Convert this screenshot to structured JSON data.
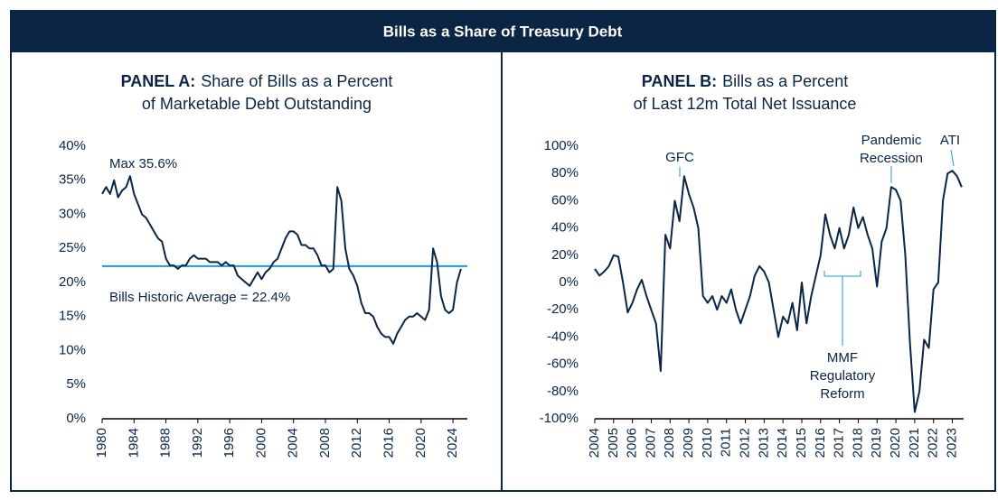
{
  "title": "Bills as a Share of Treasury Debt",
  "chart_data": [
    {
      "type": "line",
      "title_label": "PANEL A:",
      "title": [
        "Share of Bills as a Percent",
        "of Marketable Debt Outstanding"
      ],
      "x": [
        1980,
        1980.5,
        1981,
        1981.5,
        1982,
        1982.5,
        1983,
        1983.5,
        1984,
        1984.5,
        1985,
        1985.5,
        1986,
        1986.5,
        1987,
        1987.5,
        1988,
        1988.5,
        1989,
        1989.5,
        1990,
        1990.5,
        1991,
        1991.5,
        1992,
        1992.5,
        1993,
        1993.5,
        1994,
        1994.5,
        1995,
        1995.5,
        1996,
        1996.5,
        1997,
        1997.5,
        1998,
        1998.5,
        1999,
        1999.5,
        2000,
        2000.5,
        2001,
        2001.5,
        2002,
        2002.5,
        2003,
        2003.5,
        2004,
        2004.5,
        2005,
        2005.5,
        2006,
        2006.5,
        2007,
        2007.5,
        2008,
        2008.5,
        2009,
        2009.5,
        2010,
        2010.5,
        2011,
        2011.5,
        2012,
        2012.5,
        2013,
        2013.5,
        2014,
        2014.5,
        2015,
        2015.5,
        2016,
        2016.5,
        2017,
        2017.5,
        2018,
        2018.5,
        2019,
        2019.5,
        2020,
        2020.5,
        2021,
        2021.5,
        2022,
        2022.5,
        2023,
        2023.5,
        2024,
        2024.5,
        2025
      ],
      "series": [
        {
          "color": "#0b2545",
          "values": [
            33,
            34,
            33,
            35,
            32.5,
            33.5,
            34,
            35.6,
            33,
            31.5,
            30,
            29.5,
            28.5,
            27.5,
            26.5,
            26,
            23.5,
            22.5,
            22.5,
            22,
            22.5,
            22.5,
            23.5,
            24,
            23.5,
            23.5,
            23.5,
            23,
            23,
            23,
            22.5,
            23,
            22.5,
            22.5,
            21,
            20.5,
            20,
            19.5,
            20.5,
            21.5,
            20.5,
            21.5,
            22,
            23,
            23.5,
            25,
            26.5,
            27.5,
            27.5,
            27,
            25.5,
            25.5,
            25,
            25,
            24,
            22.5,
            22.5,
            21.5,
            22,
            34,
            32,
            25,
            22,
            21,
            19.5,
            17,
            15.5,
            15.5,
            15,
            13.5,
            12.5,
            12,
            12,
            11,
            12.5,
            13.5,
            14.5,
            15,
            15,
            15.5,
            15,
            14.5,
            16,
            25,
            23,
            18,
            16,
            15.5,
            16,
            20,
            22
          ]
        }
      ],
      "xlim": [
        1980,
        2025.8
      ],
      "xticks": [
        1980,
        1984,
        1988,
        1992,
        1996,
        2000,
        2004,
        2008,
        2012,
        2016,
        2020,
        2024
      ],
      "ylim": [
        0,
        40
      ],
      "yticks": [
        {
          "value": 0,
          "label": "0%"
        },
        {
          "value": 5,
          "label": "5%"
        },
        {
          "value": 10,
          "label": "10%"
        },
        {
          "value": 15,
          "label": "15%"
        },
        {
          "value": 20,
          "label": "20%"
        },
        {
          "value": 25,
          "label": "25%"
        },
        {
          "value": 30,
          "label": "30%"
        },
        {
          "value": 35,
          "label": "35%"
        },
        {
          "value": 40,
          "label": "40%"
        }
      ],
      "reference_line": {
        "value": 22.4,
        "text": "Bills Historic Average = 22.4%",
        "color": "#1a9bd7"
      },
      "annotations": [
        {
          "text": [
            "Max 35.6%"
          ]
        }
      ]
    },
    {
      "type": "line",
      "title_label": "PANEL B:",
      "title": [
        "Bills as a Percent",
        "of Last 12m Total Net Issuance"
      ],
      "x": [
        2004,
        2004.25,
        2004.5,
        2004.75,
        2005,
        2005.25,
        2005.5,
        2005.75,
        2006,
        2006.25,
        2006.5,
        2006.75,
        2007,
        2007.25,
        2007.5,
        2007.75,
        2008,
        2008.25,
        2008.5,
        2008.75,
        2009,
        2009.25,
        2009.5,
        2009.75,
        2010,
        2010.25,
        2010.5,
        2010.75,
        2011,
        2011.25,
        2011.5,
        2011.75,
        2012,
        2012.25,
        2012.5,
        2012.75,
        2013,
        2013.25,
        2013.5,
        2013.75,
        2014,
        2014.25,
        2014.5,
        2014.75,
        2015,
        2015.25,
        2015.5,
        2015.75,
        2016,
        2016.25,
        2016.5,
        2016.75,
        2017,
        2017.25,
        2017.5,
        2017.75,
        2018,
        2018.25,
        2018.5,
        2018.75,
        2019,
        2019.25,
        2019.5,
        2019.75,
        2020,
        2020.25,
        2020.5,
        2020.75,
        2021,
        2021.25,
        2021.5,
        2021.75,
        2022,
        2022.25,
        2022.5,
        2022.75,
        2023,
        2023.25,
        2023.5
      ],
      "series": [
        {
          "color": "#0b2545",
          "values": [
            10,
            5,
            8,
            12,
            20,
            19,
            0,
            -22,
            -15,
            -5,
            2,
            -10,
            -20,
            -30,
            -65,
            35,
            25,
            60,
            45,
            78,
            65,
            55,
            40,
            -10,
            -15,
            -10,
            -20,
            -10,
            -15,
            -5,
            -20,
            -30,
            -20,
            -10,
            5,
            12,
            8,
            0,
            -20,
            -40,
            -25,
            -30,
            -15,
            -35,
            0,
            -30,
            -10,
            5,
            20,
            50,
            35,
            25,
            40,
            25,
            35,
            55,
            40,
            48,
            35,
            25,
            -3,
            30,
            40,
            70,
            68,
            60,
            20,
            -45,
            -95,
            -80,
            -42,
            -48,
            -5,
            0,
            60,
            80,
            82,
            78,
            70
          ]
        }
      ],
      "xlim": [
        2004,
        2023.6
      ],
      "xticks": [
        2004,
        2005,
        2006,
        2007,
        2008,
        2009,
        2010,
        2011,
        2012,
        2013,
        2014,
        2015,
        2016,
        2017,
        2018,
        2019,
        2020,
        2021,
        2022,
        2023
      ],
      "ylim": [
        -100,
        100
      ],
      "yticks": [
        {
          "value": -100,
          "label": "-100%"
        },
        {
          "value": -80,
          "label": "-80%"
        },
        {
          "value": -60,
          "label": "-60%"
        },
        {
          "value": -40,
          "label": "-40%"
        },
        {
          "value": -20,
          "label": "-20%"
        },
        {
          "value": 0,
          "label": "0%"
        },
        {
          "value": 20,
          "label": "20%"
        },
        {
          "value": 40,
          "label": "40%"
        },
        {
          "value": 60,
          "label": "60%"
        },
        {
          "value": 80,
          "label": "80%"
        },
        {
          "value": 100,
          "label": "100%"
        }
      ],
      "annotation_color": "#1a9bd7",
      "annotations": [
        {
          "text": [
            "GFC"
          ]
        },
        {
          "text": [
            "Pandemic",
            "Recession"
          ]
        },
        {
          "text": [
            "ATI"
          ]
        },
        {
          "text": [
            "MMF",
            "Regulatory",
            "Reform"
          ]
        }
      ]
    }
  ]
}
